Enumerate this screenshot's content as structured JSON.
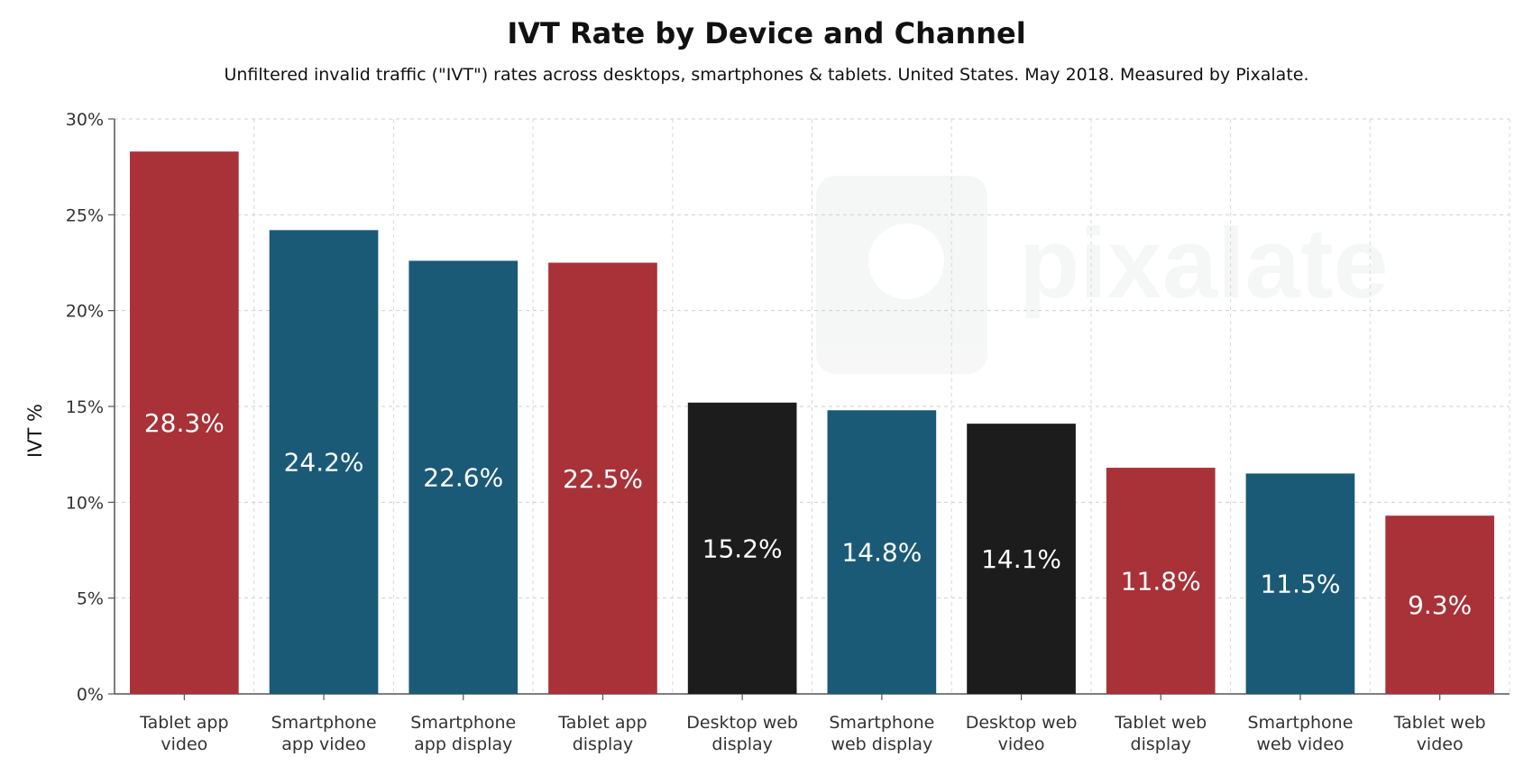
{
  "chart_data": {
    "type": "bar",
    "title": "IVT Rate by Device and Channel",
    "subtitle": "Unfiltered invalid traffic (\"IVT\") rates across desktops, smartphones & tablets. United States. May 2018. Measured by Pixalate.",
    "xlabel": "",
    "ylabel": "IVT %",
    "ylim": [
      0,
      30
    ],
    "yticks": [
      "0%",
      "5%",
      "10%",
      "15%",
      "20%",
      "25%",
      "30%"
    ],
    "grid": true,
    "watermark": "pixalate",
    "categories": [
      [
        "Tablet app",
        "video"
      ],
      [
        "Smartphone",
        "app video"
      ],
      [
        "Smartphone",
        "app display"
      ],
      [
        "Tablet app",
        "display"
      ],
      [
        "Desktop web",
        "display"
      ],
      [
        "Smartphone",
        "web display"
      ],
      [
        "Desktop web",
        "video"
      ],
      [
        "Tablet web",
        "display"
      ],
      [
        "Smartphone",
        "web video"
      ],
      [
        "Tablet web",
        "video"
      ]
    ],
    "values": [
      28.3,
      24.2,
      22.6,
      22.5,
      15.2,
      14.8,
      14.1,
      11.8,
      11.5,
      9.3
    ],
    "data_labels": [
      "28.3%",
      "24.2%",
      "22.6%",
      "22.5%",
      "15.2%",
      "14.8%",
      "14.1%",
      "11.8%",
      "11.5%",
      "9.3%"
    ],
    "bar_colors": [
      "#a83238",
      "#1b5a77",
      "#1b5a77",
      "#a83238",
      "#1c1c1c",
      "#1b5a77",
      "#1c1c1c",
      "#a83238",
      "#1b5a77",
      "#a83238"
    ]
  }
}
